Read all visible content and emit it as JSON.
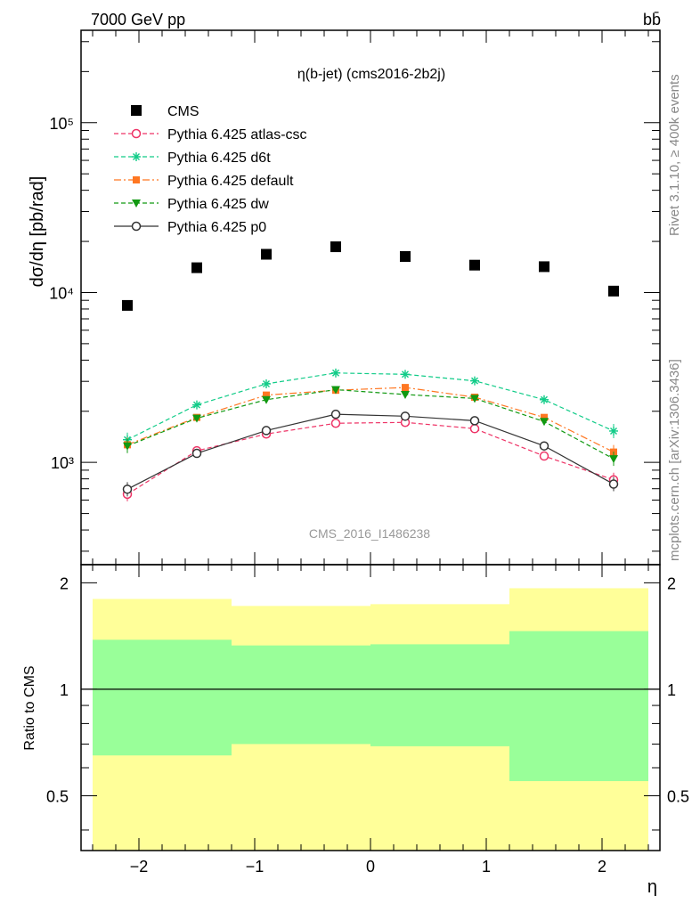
{
  "header": {
    "left": "7000 GeV pp",
    "right": "bb̄"
  },
  "chart_data": [
    {
      "type": "scatter",
      "title": "η(b-jet) (cms2016-2b2j)",
      "ylabel": "dσ/dη [pb/rad]",
      "yscale": "log",
      "ylim": [
        250,
        350000
      ],
      "xlim": [
        -2.5,
        2.5
      ],
      "watermark": "CMS_2016_I1486238",
      "x": [
        -2.1,
        -1.5,
        -0.9,
        -0.3,
        0.3,
        0.9,
        1.5,
        2.1
      ],
      "y_tick_labels": [
        "10³",
        "10⁴",
        "10⁵"
      ],
      "series": [
        {
          "name": "CMS",
          "marker": "square",
          "color": "#000000",
          "line": "none",
          "values": [
            8400,
            14000,
            16800,
            18600,
            16300,
            14500,
            14200,
            10200
          ]
        },
        {
          "name": "Pythia 6.425 atlas-csc",
          "marker": "circle-open",
          "color": "#ee3366",
          "line": "dashed",
          "values": [
            650,
            1170,
            1470,
            1700,
            1720,
            1580,
            1090,
            790
          ]
        },
        {
          "name": "Pythia 6.425 d6t",
          "marker": "star",
          "color": "#11cc88",
          "line": "dashed",
          "values": [
            1360,
            2180,
            2900,
            3360,
            3300,
            3020,
            2340,
            1530
          ]
        },
        {
          "name": "Pythia 6.425 default",
          "marker": "square-small",
          "color": "#ff7722",
          "line": "dashdot",
          "values": [
            1270,
            1840,
            2490,
            2660,
            2760,
            2420,
            1840,
            1150
          ]
        },
        {
          "name": "Pythia 6.425 dw",
          "marker": "triangle-down",
          "color": "#119911",
          "line": "dashed",
          "values": [
            1250,
            1820,
            2340,
            2680,
            2510,
            2380,
            1740,
            1050
          ]
        },
        {
          "name": "Pythia 6.425 p0",
          "marker": "circle-open",
          "color": "#333333",
          "line": "solid",
          "values": [
            695,
            1130,
            1540,
            1920,
            1870,
            1760,
            1250,
            745
          ]
        }
      ],
      "legend": "top-left"
    },
    {
      "type": "area",
      "ylabel": "Ratio to CMS",
      "xlabel": "η",
      "ylim": [
        0.35,
        2.25
      ],
      "xlim": [
        -2.5,
        2.5
      ],
      "y_ticks": [
        0.5,
        1,
        2
      ],
      "y_tick_labels": [
        "0.5",
        "1",
        "2"
      ],
      "x_ticks": [
        -2,
        -1,
        0,
        1,
        2
      ],
      "x_tick_labels": [
        "−2",
        "−1",
        "0",
        "1",
        "2"
      ],
      "bins": [
        [
          -2.4,
          -1.2
        ],
        [
          -1.2,
          0
        ],
        [
          0,
          1.2
        ],
        [
          1.2,
          2.4
        ]
      ],
      "outer_band": {
        "color": "#ffff99",
        "low": [
          0.35,
          0.35,
          0.35,
          0.35
        ],
        "high": [
          1.8,
          1.72,
          1.74,
          1.93
        ]
      },
      "inner_band": {
        "color": "#99ff99",
        "low": [
          0.65,
          0.7,
          0.69,
          0.55
        ],
        "high": [
          1.38,
          1.33,
          1.34,
          1.46
        ]
      },
      "reference_line": 1
    }
  ],
  "sidebar": {
    "rivet": "Rivet 3.1.10, ≥ 400k events",
    "mcplots": "mcplots.cern.ch [arXiv:1306.3436]"
  }
}
